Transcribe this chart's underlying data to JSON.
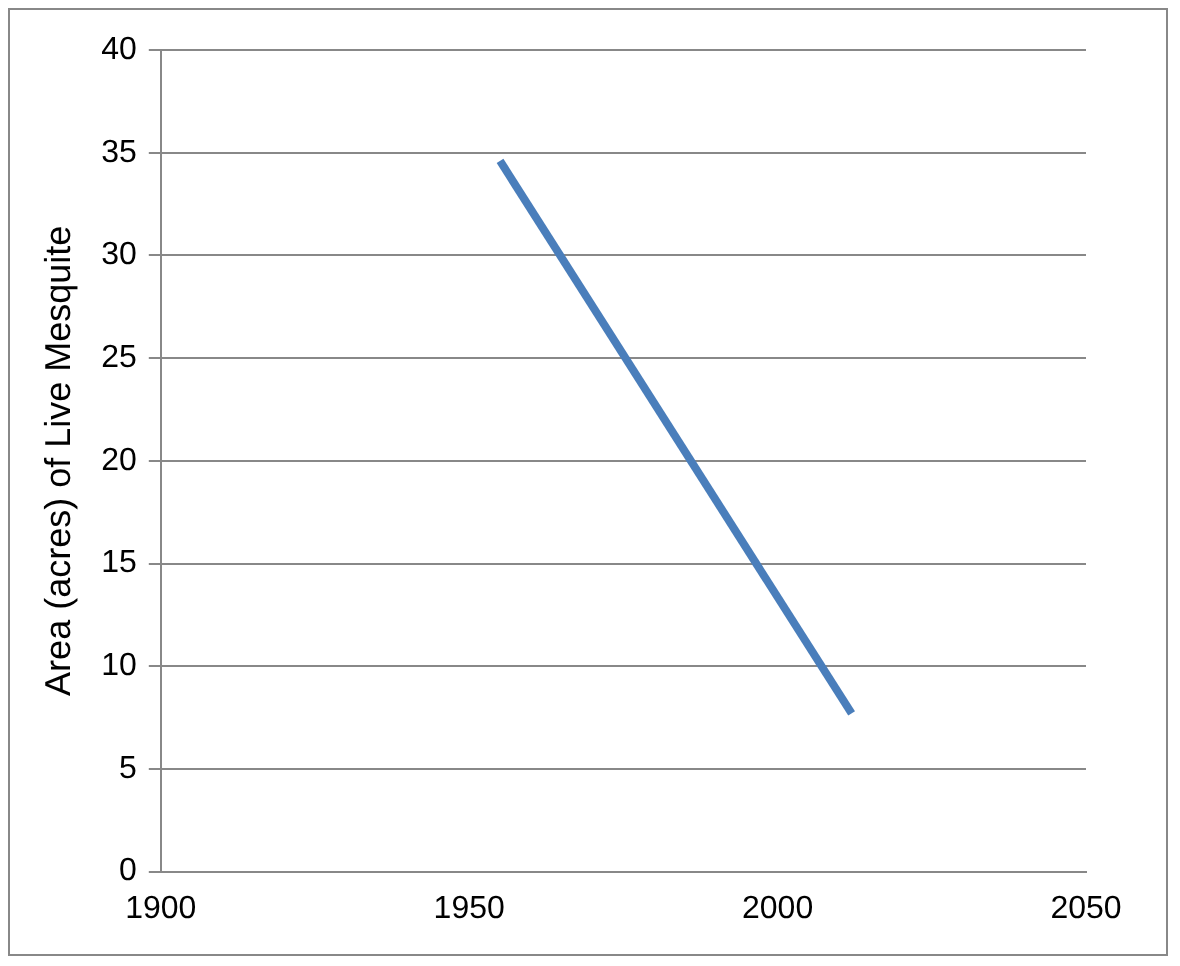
{
  "chart_data": {
    "type": "line",
    "ylabel": "Area (acres) of Live Mesquite",
    "x": [
      1955,
      2012
    ],
    "series": [
      {
        "color": "#4a7ebb",
        "values": [
          34.6,
          7.7
        ]
      }
    ],
    "xlim": [
      1900,
      2050
    ],
    "xticks": [
      1900,
      1950,
      2000,
      2050
    ],
    "ylim": [
      0,
      40
    ],
    "yticks": [
      0,
      5,
      10,
      15,
      20,
      25,
      30,
      35,
      40
    ],
    "grid": "y",
    "legend": false,
    "marker": "none",
    "line_style": "solid"
  }
}
